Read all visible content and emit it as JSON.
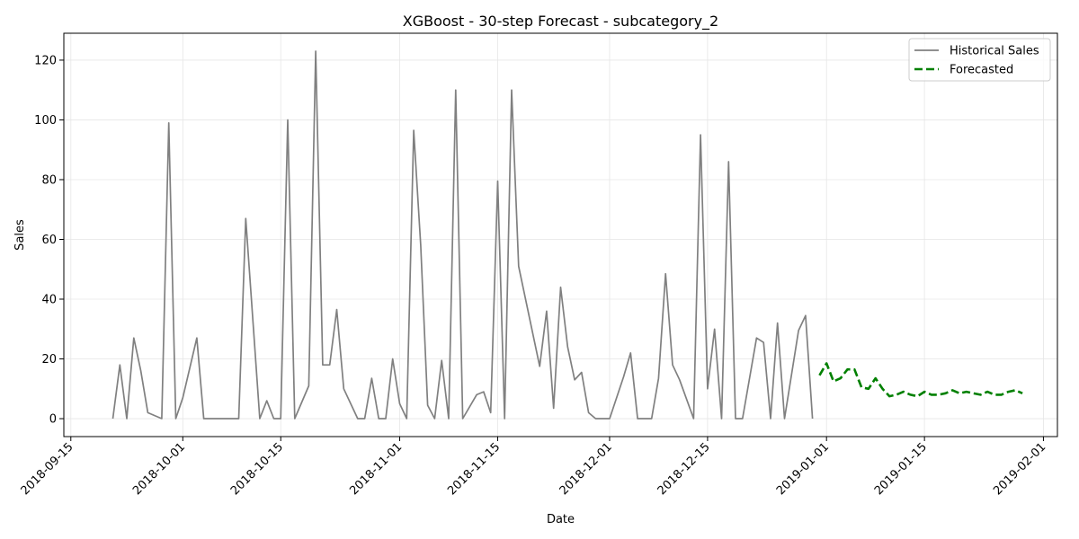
{
  "chart_data": {
    "type": "line",
    "title": "XGBoost - 30-step Forecast - subcategory_2",
    "xlabel": "Date",
    "ylabel": "Sales",
    "xlim": [
      "2018-09-14",
      "2019-02-03"
    ],
    "ylim": [
      -6,
      129
    ],
    "grid": true,
    "legend_position": "top-right",
    "x_ticks": [
      "2018-09-15",
      "2018-10-01",
      "2018-10-15",
      "2018-11-01",
      "2018-11-15",
      "2018-12-01",
      "2018-12-15",
      "2019-01-01",
      "2019-01-15",
      "2019-02-01"
    ],
    "y_ticks": [
      0,
      20,
      40,
      60,
      80,
      100,
      120
    ],
    "series": [
      {
        "name": "Historical Sales",
        "color": "#808080",
        "style": "solid",
        "x": [
          "2018-09-21",
          "2018-09-22",
          "2018-09-23",
          "2018-09-24",
          "2018-09-25",
          "2018-09-26",
          "2018-09-28",
          "2018-09-29",
          "2018-09-30",
          "2018-10-01",
          "2018-10-03",
          "2018-10-04",
          "2018-10-08",
          "2018-10-09",
          "2018-10-10",
          "2018-10-12",
          "2018-10-13",
          "2018-10-14",
          "2018-10-15",
          "2018-10-16",
          "2018-10-17",
          "2018-10-19",
          "2018-10-20",
          "2018-10-21",
          "2018-10-22",
          "2018-10-23",
          "2018-10-24",
          "2018-10-26",
          "2018-10-27",
          "2018-10-28",
          "2018-10-29",
          "2018-10-30",
          "2018-10-31",
          "2018-11-01",
          "2018-11-02",
          "2018-11-03",
          "2018-11-04",
          "2018-11-05",
          "2018-11-06",
          "2018-11-07",
          "2018-11-08",
          "2018-11-09",
          "2018-11-10",
          "2018-11-12",
          "2018-11-13",
          "2018-11-14",
          "2018-11-15",
          "2018-11-16",
          "2018-11-17",
          "2018-11-18",
          "2018-11-21",
          "2018-11-22",
          "2018-11-23",
          "2018-11-24",
          "2018-11-25",
          "2018-11-26",
          "2018-11-27",
          "2018-11-28",
          "2018-11-29",
          "2018-11-30",
          "2018-12-01",
          "2018-12-03",
          "2018-12-04",
          "2018-12-05",
          "2018-12-07",
          "2018-12-08",
          "2018-12-09",
          "2018-12-10",
          "2018-12-11",
          "2018-12-13",
          "2018-12-14",
          "2018-12-15",
          "2018-12-16",
          "2018-12-17",
          "2018-12-18",
          "2018-12-19",
          "2018-12-20",
          "2018-12-22",
          "2018-12-23",
          "2018-12-24",
          "2018-12-25",
          "2018-12-26",
          "2018-12-28",
          "2018-12-29",
          "2018-12-30"
        ],
        "values": [
          0,
          18,
          0,
          27,
          16,
          2,
          0,
          99,
          0,
          7,
          27,
          0,
          0,
          0,
          67,
          0,
          6,
          0,
          0,
          100,
          0,
          11,
          123,
          18,
          18,
          36.5,
          10,
          0,
          0,
          13.5,
          0,
          0,
          20,
          5,
          0,
          96.5,
          58,
          4.5,
          0,
          19.5,
          0,
          110,
          0,
          8,
          9,
          2,
          79.5,
          0,
          110,
          51,
          17.5,
          36,
          3.5,
          44,
          24,
          13,
          15.5,
          2,
          0,
          0,
          0,
          14,
          22,
          0,
          0,
          13.5,
          48.5,
          18,
          13,
          0,
          95,
          10,
          30,
          0,
          86,
          0,
          0,
          27,
          25.5,
          0,
          32,
          0,
          29.5,
          34.5,
          0
        ]
      },
      {
        "name": "Forecasted",
        "color": "#008000",
        "style": "dashed",
        "x": [
          "2018-12-31",
          "2019-01-01",
          "2019-01-02",
          "2019-01-03",
          "2019-01-04",
          "2019-01-05",
          "2019-01-06",
          "2019-01-07",
          "2019-01-08",
          "2019-01-09",
          "2019-01-10",
          "2019-01-11",
          "2019-01-12",
          "2019-01-13",
          "2019-01-14",
          "2019-01-15",
          "2019-01-16",
          "2019-01-17",
          "2019-01-18",
          "2019-01-19",
          "2019-01-20",
          "2019-01-21",
          "2019-01-22",
          "2019-01-23",
          "2019-01-24",
          "2019-01-25",
          "2019-01-26",
          "2019-01-27",
          "2019-01-28",
          "2019-01-29"
        ],
        "values": [
          14.5,
          18.5,
          12.5,
          13.5,
          16.5,
          16.5,
          10.5,
          10,
          13.5,
          10,
          7.5,
          8,
          9,
          8,
          7.5,
          9,
          8,
          8,
          8.5,
          9.5,
          8.5,
          9,
          8.5,
          8,
          9,
          8,
          8,
          9,
          9.5,
          8.5
        ]
      }
    ]
  }
}
